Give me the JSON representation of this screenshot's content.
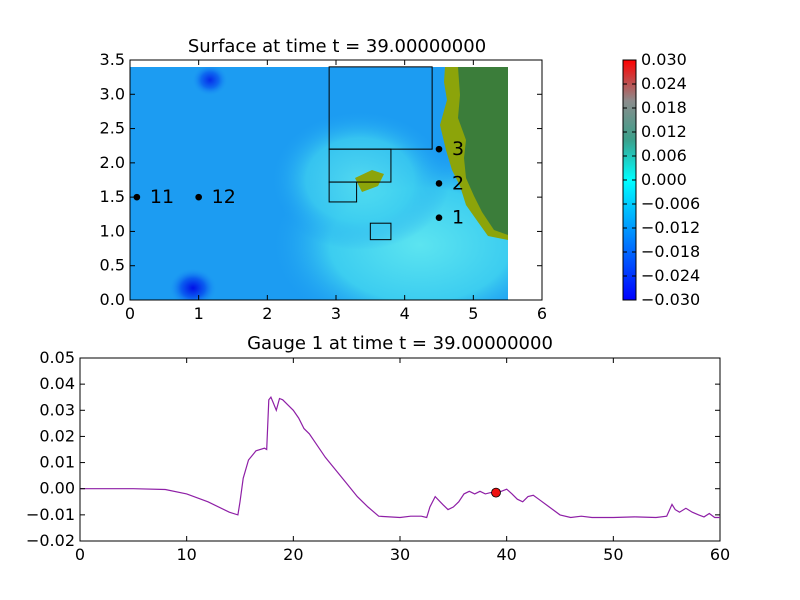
{
  "chart_data": [
    {
      "type": "heatmap",
      "title": "Surface at time t =    39.00000000",
      "xlim": [
        0,
        6
      ],
      "ylim": [
        0,
        3.5
      ],
      "x_ticks": [
        "0",
        "1",
        "2",
        "3",
        "4",
        "5",
        "6"
      ],
      "y_ticks": [
        "0.0",
        "0.5",
        "1.0",
        "1.5",
        "2.0",
        "2.5",
        "3.0",
        "3.5"
      ],
      "domain_extent": {
        "x": [
          0,
          5.5
        ],
        "y": [
          0,
          3.4
        ]
      },
      "grid": false,
      "gauges": [
        {
          "id": "1",
          "x": 4.5,
          "y": 1.2
        },
        {
          "id": "2",
          "x": 4.5,
          "y": 1.7
        },
        {
          "id": "3",
          "x": 4.5,
          "y": 2.2
        },
        {
          "id": "11",
          "x": 0.1,
          "y": 1.5
        },
        {
          "id": "12",
          "x": 1.0,
          "y": 1.5
        }
      ],
      "refinement_patches": [
        {
          "x": [
            2.9,
            4.4
          ],
          "y": [
            2.2,
            3.4
          ]
        },
        {
          "x": [
            2.9,
            3.8
          ],
          "y": [
            1.72,
            2.2
          ]
        },
        {
          "x": [
            2.9,
            3.3
          ],
          "y": [
            1.43,
            1.72
          ]
        },
        {
          "x": [
            3.5,
            3.8
          ],
          "y": [
            0.88,
            1.12
          ]
        }
      ],
      "colorbar": {
        "range": [
          -0.03,
          0.03
        ],
        "tick_labels": [
          "0.030",
          "0.024",
          "0.018",
          "0.012",
          "0.006",
          "0.000",
          "−0.006",
          "−0.012",
          "−0.018",
          "−0.024",
          "−0.030"
        ],
        "colormap": [
          "#0000ff",
          "#0080ff",
          "#00ffff",
          "#3c9f8a",
          "#8c8c8c",
          "#ff0000"
        ]
      },
      "colors": {
        "water_base": "#1c9cf2",
        "shallow_water": "#5ce4f0",
        "dry_land_green": "#3b7d3a",
        "dry_land_olive": "#8ca40a"
      }
    },
    {
      "type": "line",
      "title": "Gauge 1 at time t =    39.00000000",
      "xlim": [
        0,
        60
      ],
      "ylim": [
        -0.02,
        0.05
      ],
      "x_ticks": [
        "0",
        "10",
        "20",
        "30",
        "40",
        "50",
        "60"
      ],
      "y_ticks": [
        "−0.02",
        "−0.01",
        "0.00",
        "0.01",
        "0.02",
        "0.03",
        "0.04",
        "0.05"
      ],
      "grid": false,
      "series": [
        {
          "color": "#8e1fa6",
          "points": [
            [
              0,
              0
            ],
            [
              5,
              0
            ],
            [
              8,
              -0.0003
            ],
            [
              10,
              -0.002
            ],
            [
              12,
              -0.005
            ],
            [
              14,
              -0.009
            ],
            [
              14.8,
              -0.01
            ],
            [
              15.0,
              -0.005
            ],
            [
              15.3,
              0.004
            ],
            [
              15.8,
              0.011
            ],
            [
              16.5,
              0.0145
            ],
            [
              17.3,
              0.0155
            ],
            [
              17.5,
              0.015
            ],
            [
              17.7,
              0.034
            ],
            [
              17.9,
              0.035
            ],
            [
              18.1,
              0.033
            ],
            [
              18.4,
              0.03
            ],
            [
              18.7,
              0.0345
            ],
            [
              19.0,
              0.034
            ],
            [
              19.5,
              0.032
            ],
            [
              20.0,
              0.03
            ],
            [
              20.5,
              0.027
            ],
            [
              21.0,
              0.023
            ],
            [
              21.5,
              0.021
            ],
            [
              22.0,
              0.018
            ],
            [
              23.0,
              0.012
            ],
            [
              24.0,
              0.007
            ],
            [
              25.0,
              0.002
            ],
            [
              26.0,
              -0.003
            ],
            [
              27.0,
              -0.007
            ],
            [
              28.0,
              -0.0105
            ],
            [
              30.0,
              -0.011
            ],
            [
              31.0,
              -0.0105
            ],
            [
              32.0,
              -0.0105
            ],
            [
              32.5,
              -0.011
            ],
            [
              32.8,
              -0.007
            ],
            [
              33.3,
              -0.003
            ],
            [
              34.0,
              -0.006
            ],
            [
              34.5,
              -0.008
            ],
            [
              35.0,
              -0.007
            ],
            [
              35.5,
              -0.005
            ],
            [
              36.0,
              -0.002
            ],
            [
              36.5,
              -0.001
            ],
            [
              37.0,
              -0.002
            ],
            [
              37.5,
              -0.001
            ],
            [
              38.0,
              -0.002
            ],
            [
              38.5,
              -0.0015
            ],
            [
              39.0,
              -0.0015
            ],
            [
              39.5,
              -0.001
            ],
            [
              40.0,
              -0.0002
            ],
            [
              40.5,
              -0.002
            ],
            [
              41.0,
              -0.004
            ],
            [
              41.5,
              -0.005
            ],
            [
              42.0,
              -0.003
            ],
            [
              42.5,
              -0.0025
            ],
            [
              43.0,
              -0.004
            ],
            [
              44.0,
              -0.007
            ],
            [
              45.0,
              -0.01
            ],
            [
              46.0,
              -0.011
            ],
            [
              47.0,
              -0.0105
            ],
            [
              48.0,
              -0.011
            ],
            [
              50.0,
              -0.011
            ],
            [
              52.0,
              -0.0108
            ],
            [
              54.0,
              -0.011
            ],
            [
              55.0,
              -0.0105
            ],
            [
              55.5,
              -0.006
            ],
            [
              55.8,
              -0.008
            ],
            [
              56.2,
              -0.009
            ],
            [
              56.8,
              -0.0075
            ],
            [
              57.4,
              -0.009
            ],
            [
              58.0,
              -0.01
            ],
            [
              58.5,
              -0.0108
            ],
            [
              59.0,
              -0.0095
            ],
            [
              59.5,
              -0.011
            ],
            [
              60.0,
              -0.011
            ]
          ]
        }
      ],
      "current_time_marker": {
        "x": 39.0,
        "y": -0.0015,
        "color": "#ee1111"
      }
    }
  ]
}
